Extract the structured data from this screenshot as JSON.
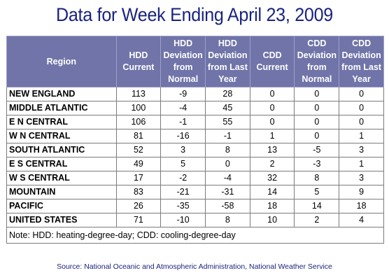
{
  "chart_data": {
    "type": "table",
    "title": "Data for Week Ending April 23, 2009",
    "columns": [
      "Region",
      "HDD Current",
      "HDD Deviation from Normal",
      "HDD Deviation from Last Year",
      "CDD Current",
      "CDD Deviation from Normal",
      "CDD Deviation from Last Year"
    ],
    "rows": [
      [
        "NEW ENGLAND",
        "113",
        "-9",
        "28",
        "0",
        "0",
        "0"
      ],
      [
        "MIDDLE ATLANTIC",
        "100",
        "-4",
        "45",
        "0",
        "0",
        "0"
      ],
      [
        "E N CENTRAL",
        "106",
        "-1",
        "55",
        "0",
        "0",
        "0"
      ],
      [
        "W N CENTRAL",
        "81",
        "-16",
        "-1",
        "1",
        "0",
        "1"
      ],
      [
        "SOUTH ATLANTIC",
        "52",
        "3",
        "8",
        "13",
        "-5",
        "3"
      ],
      [
        "E S CENTRAL",
        "49",
        "5",
        "0",
        "2",
        "-3",
        "1"
      ],
      [
        "W S CENTRAL",
        "17",
        "-2",
        "-4",
        "32",
        "8",
        "3"
      ],
      [
        "MOUNTAIN",
        "83",
        "-21",
        "-31",
        "14",
        "5",
        "9"
      ],
      [
        "PACIFIC",
        "26",
        "-35",
        "-58",
        "18",
        "14",
        "18"
      ],
      [
        "UNITED STATES",
        "71",
        "-10",
        "8",
        "10",
        "2",
        "4"
      ]
    ],
    "note": "Note: HDD: heating-degree-day; CDD: cooling-degree-day",
    "source": "Source:  National Oceanic and Atmospheric Administration, National Weather Service"
  },
  "colors": {
    "title": "#1a237e",
    "header_bg": "#7074a8",
    "header_text": "#ffffff",
    "source_text": "#1a237e"
  }
}
